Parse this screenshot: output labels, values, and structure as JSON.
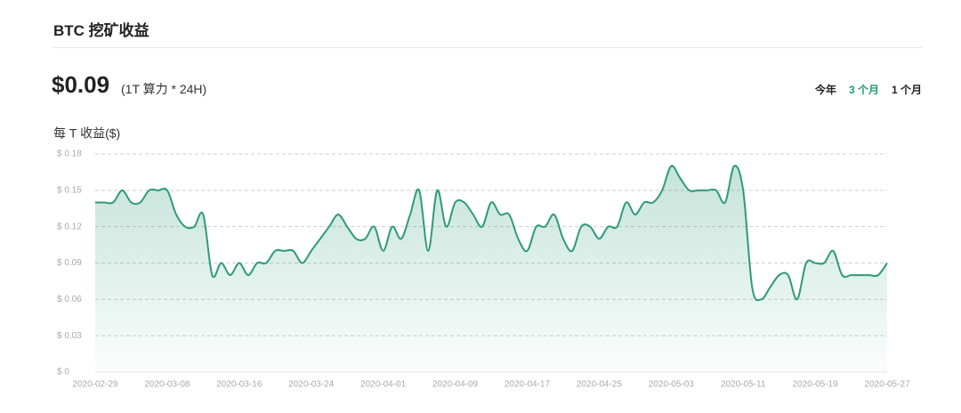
{
  "header": {
    "title": "BTC 挖矿收益"
  },
  "summary": {
    "price": "$0.09",
    "note": "(1T 算力 * 24H)"
  },
  "tabs": {
    "items": [
      "今年",
      "3 个月",
      "1 个月"
    ],
    "active": 1,
    "active_color": "#1f9d6e"
  },
  "chart_data": {
    "type": "line",
    "y_label": "每 T 收益($)",
    "color": "#2e9b78",
    "area": true,
    "grid": true,
    "categories": [
      "2020-02-29",
      null,
      null,
      null,
      null,
      null,
      null,
      null,
      "2020-03-08",
      null,
      null,
      null,
      null,
      null,
      null,
      null,
      "2020-03-16",
      null,
      null,
      null,
      null,
      null,
      null,
      null,
      "2020-03-24",
      null,
      null,
      null,
      null,
      null,
      null,
      null,
      "2020-04-01",
      null,
      null,
      null,
      null,
      null,
      null,
      null,
      "2020-04-09",
      null,
      null,
      null,
      null,
      null,
      null,
      null,
      "2020-04-17",
      null,
      null,
      null,
      null,
      null,
      null,
      null,
      "2020-04-25",
      null,
      null,
      null,
      null,
      null,
      null,
      null,
      "2020-05-03",
      null,
      null,
      null,
      null,
      null,
      null,
      null,
      "2020-05-11",
      null,
      null,
      null,
      null,
      null,
      null,
      null,
      "2020-05-19",
      null,
      null,
      null,
      null,
      null,
      null,
      null,
      "2020-05-27"
    ],
    "values": [
      0.14,
      0.14,
      0.14,
      0.15,
      0.14,
      0.14,
      0.15,
      0.15,
      0.15,
      0.13,
      0.12,
      0.12,
      0.13,
      0.08,
      0.09,
      0.08,
      0.09,
      0.08,
      0.09,
      0.09,
      0.1,
      0.1,
      0.1,
      0.09,
      0.1,
      0.11,
      0.12,
      0.13,
      0.12,
      0.11,
      0.11,
      0.12,
      0.1,
      0.12,
      0.11,
      0.13,
      0.15,
      0.1,
      0.15,
      0.12,
      0.14,
      0.14,
      0.13,
      0.12,
      0.14,
      0.13,
      0.13,
      0.11,
      0.1,
      0.12,
      0.12,
      0.13,
      0.11,
      0.1,
      0.12,
      0.12,
      0.11,
      0.12,
      0.12,
      0.14,
      0.13,
      0.14,
      0.14,
      0.15,
      0.17,
      0.16,
      0.15,
      0.15,
      0.15,
      0.15,
      0.14,
      0.17,
      0.15,
      0.07,
      0.06,
      0.07,
      0.08,
      0.08,
      0.06,
      0.09,
      0.09,
      0.09,
      0.1,
      0.08,
      0.08,
      0.08,
      0.08,
      0.08,
      0.09
    ],
    "ylim": [
      0,
      0.18
    ],
    "yticks": [
      {
        "value": 0,
        "label": "$ 0"
      },
      {
        "value": 0.03,
        "label": "$ 0.03"
      },
      {
        "value": 0.06,
        "label": "$ 0.06"
      },
      {
        "value": 0.09,
        "label": "$ 0.09"
      },
      {
        "value": 0.12,
        "label": "$ 0.12"
      },
      {
        "value": 0.15,
        "label": "$ 0.15"
      },
      {
        "value": 0.18,
        "label": "$ 0.18"
      }
    ]
  }
}
